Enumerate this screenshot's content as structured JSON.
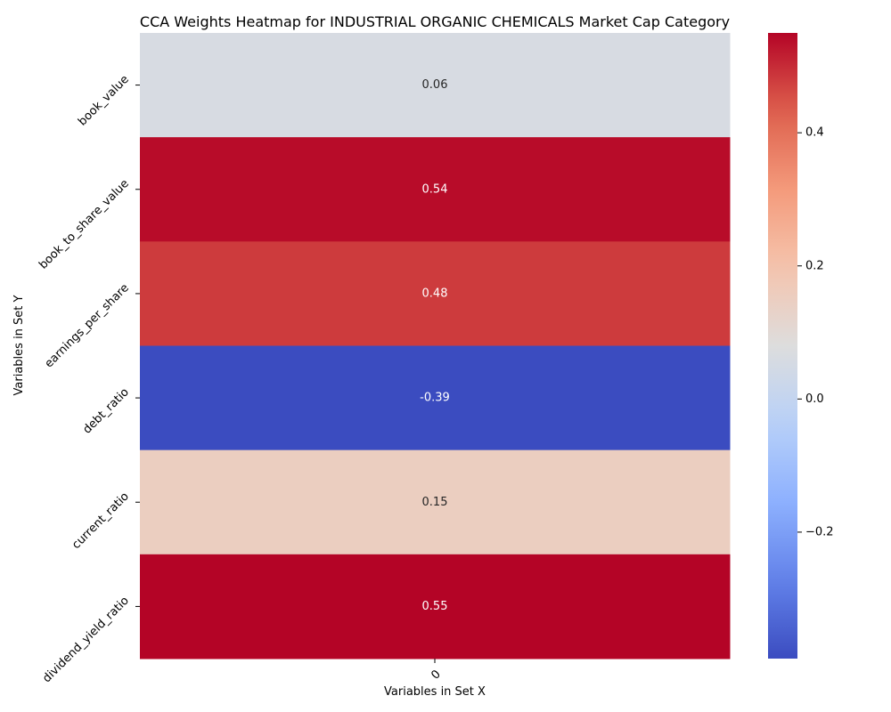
{
  "chart_data": {
    "type": "heatmap",
    "title": "CCA Weights Heatmap for INDUSTRIAL ORGANIC CHEMICALS Market Cap Category",
    "xlabel": "Variables in Set X",
    "ylabel": "Variables in Set Y",
    "x_categories": [
      "0"
    ],
    "y_categories": [
      "book_value",
      "book_to_share_value",
      "earnings_per_share",
      "debt_ratio",
      "current_ratio",
      "dividend_yield_ratio"
    ],
    "values": [
      [
        0.06
      ],
      [
        0.54
      ],
      [
        0.48
      ],
      [
        -0.39
      ],
      [
        0.15
      ],
      [
        0.55
      ]
    ],
    "value_labels": [
      "0.06",
      "0.54",
      "0.48",
      "-0.39",
      "0.15",
      "0.55"
    ],
    "colormap": "coolwarm",
    "vmin": -0.39,
    "vmax": 0.55,
    "colorbar_ticks": [
      -0.2,
      0.0,
      0.2,
      0.4
    ],
    "colorbar_tick_labels": [
      "−0.2",
      "0.0",
      "0.2",
      "0.4"
    ]
  }
}
